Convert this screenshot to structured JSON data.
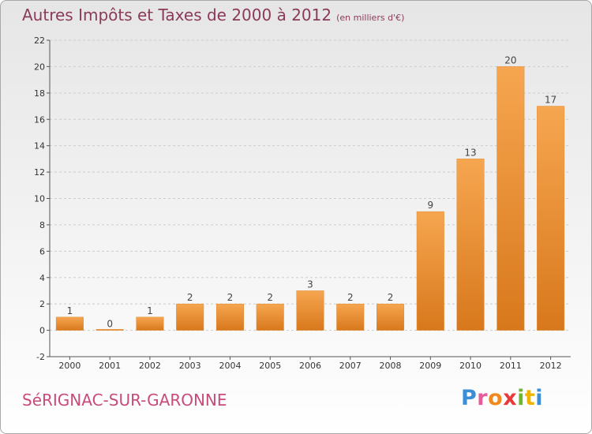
{
  "header": {
    "title": "Autres Impôts et Taxes de 2000 à 2012",
    "subtitle": "(en milliers d'€)"
  },
  "footer": {
    "commune": "SéRIGNAC-SUR-GARONNE",
    "brand_letters": [
      {
        "ch": "P",
        "color": "#3a8dd6"
      },
      {
        "ch": "r",
        "color": "#e85a9a"
      },
      {
        "ch": "o",
        "color": "#f08a1c"
      },
      {
        "ch": "x",
        "color": "#e83a3a"
      },
      {
        "ch": "i",
        "color": "#6bb82c"
      },
      {
        "ch": "t",
        "color": "#f0b400"
      },
      {
        "ch": "i",
        "color": "#3a8dd6"
      }
    ]
  },
  "colors": {
    "bar_light": "#f6a650",
    "bar_dark": "#d8781c",
    "axis": "#555555",
    "grid": "#cccccc",
    "title": "#8a3a5a",
    "commune": "#c84b7c"
  },
  "chart_data": {
    "type": "bar",
    "categories": [
      "2000",
      "2001",
      "2002",
      "2003",
      "2004",
      "2005",
      "2006",
      "2007",
      "2008",
      "2009",
      "2010",
      "2011",
      "2012"
    ],
    "values": [
      1,
      0,
      1,
      2,
      2,
      2,
      3,
      2,
      2,
      9,
      13,
      20,
      17
    ],
    "title": "Autres Impôts et Taxes de 2000 à 2012",
    "xlabel": "",
    "ylabel": "",
    "ylim": [
      -2,
      22
    ],
    "yticks": [
      -2,
      0,
      2,
      4,
      6,
      8,
      10,
      12,
      14,
      16,
      18,
      20,
      22
    ],
    "data_labels": true,
    "grid": "horizontal"
  }
}
